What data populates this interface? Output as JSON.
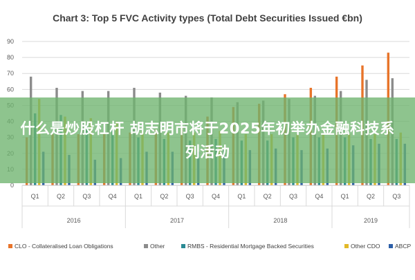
{
  "chart_data": {
    "type": "bar",
    "title": "Chart 3: Top 5 FVC Activity types (Total Debt Securities Issued €bn)",
    "ylim": [
      0,
      90
    ],
    "yticks": [
      "0",
      "10",
      "20",
      "30",
      "40",
      "50",
      "60",
      "70",
      "80",
      "90"
    ],
    "grid": true,
    "legend_position": "bottom",
    "categories": [
      "Q1",
      "Q2",
      "Q3",
      "Q4",
      "Q1",
      "Q2",
      "Q3",
      "Q4",
      "Q1",
      "Q2",
      "Q3",
      "Q4",
      "Q1",
      "Q2",
      "Q3"
    ],
    "years": [
      {
        "label": "2016",
        "span": 4
      },
      {
        "label": "2017",
        "span": 4
      },
      {
        "label": "2018",
        "span": 4
      },
      {
        "label": "2019",
        "span": 3
      }
    ],
    "series": [
      {
        "name": "CLO - Collateralised Loan Obligations",
        "color": "#e8742a",
        "values": [
          30,
          32,
          32,
          32,
          33,
          35,
          36,
          43,
          49,
          51,
          57,
          61,
          68,
          75,
          83
        ]
      },
      {
        "name": "Other",
        "color": "#8c8c8c",
        "values": [
          68,
          61,
          59,
          59,
          61,
          58,
          56,
          55,
          52,
          53,
          54,
          56,
          59,
          66,
          67
        ]
      },
      {
        "name": "RMBS - Residential Mortgage Backed Securities",
        "color": "#2a8a94",
        "values": [
          45,
          44,
          38,
          37,
          30,
          29,
          28,
          29,
          28,
          28,
          30,
          30,
          30,
          29,
          29
        ]
      },
      {
        "name": "Other CDO",
        "color": "#e2b928",
        "values": [
          54,
          43,
          42,
          40,
          34,
          33,
          33,
          34,
          32,
          32,
          32,
          32,
          32,
          32,
          33
        ]
      },
      {
        "name": "ABCP",
        "color": "#2d5fa8",
        "values": [
          21,
          19,
          16,
          17,
          21,
          21,
          21,
          22,
          22,
          23,
          22,
          23,
          25,
          26,
          26
        ]
      }
    ]
  },
  "overlay": {
    "text": "什么是炒股杠杆 胡志明市将于2025年初举办金融科技系列活动"
  }
}
